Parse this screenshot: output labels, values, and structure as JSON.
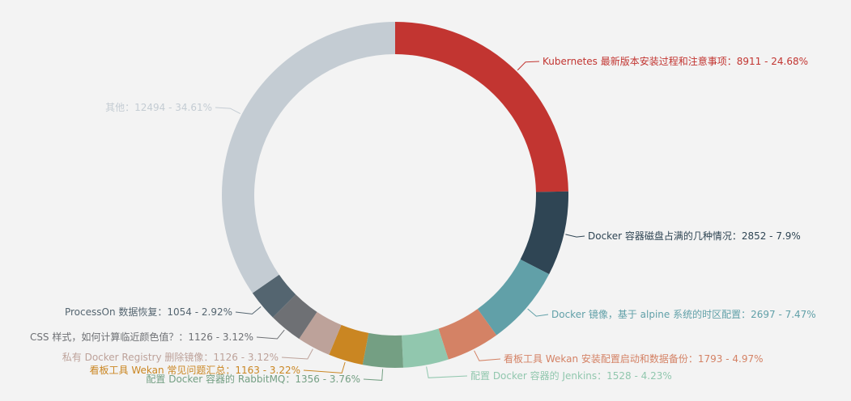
{
  "chart_data": {
    "type": "pie",
    "donut": true,
    "title": "",
    "legend": "none",
    "slices": [
      {
        "name": "Kubernetes 最新版本安装过程和注意事项",
        "value": 8911,
        "percent": "24.68%",
        "label": "Kubernetes 最新版本安装过程和注意事项：8911 - 24.68%",
        "color": "#c23531"
      },
      {
        "name": "Docker 容器磁盘占满的几种情况",
        "value": 2852,
        "percent": "7.9%",
        "label": "Docker 容器磁盘占满的几种情况：2852 - 7.9%",
        "color": "#2f4554"
      },
      {
        "name": "Docker 镜像，基于 alpine 系统的时区配置",
        "value": 2697,
        "percent": "7.47%",
        "label": "Docker 镜像，基于 alpine 系统的时区配置：2697 - 7.47%",
        "color": "#61a0a8"
      },
      {
        "name": "看板工具 Wekan 安装配置启动和数据备份",
        "value": 1793,
        "percent": "4.97%",
        "label": "看板工具 Wekan 安装配置启动和数据备份：1793 - 4.97%",
        "color": "#d48265"
      },
      {
        "name": "配置 Docker 容器的 Jenkins",
        "value": 1528,
        "percent": "4.23%",
        "label": "配置 Docker 容器的 Jenkins：1528 - 4.23%",
        "color": "#91c7ae"
      },
      {
        "name": "配置 Docker 容器的 RabbitMQ",
        "value": 1356,
        "percent": "3.76%",
        "label": "配置 Docker 容器的 RabbitMQ：1356 - 3.76%",
        "color": "#749f83"
      },
      {
        "name": "看板工具 Wekan 常见问题汇总",
        "value": 1163,
        "percent": "3.22%",
        "label": "看板工具 Wekan 常见问题汇总：1163 - 3.22%",
        "color": "#ca8622"
      },
      {
        "name": "私有 Docker Registry 删除镜像",
        "value": 1126,
        "percent": "3.12%",
        "label": "私有 Docker Registry 删除镜像：1126 - 3.12%",
        "color": "#bda29a"
      },
      {
        "name": "CSS 样式，如何计算临近颜色值？",
        "value": 1126,
        "percent": "3.12%",
        "label": "CSS 样式，如何计算临近颜色值？：1126 - 3.12%",
        "color": "#6e7074"
      },
      {
        "name": "ProcessOn 数据恢复",
        "value": 1054,
        "percent": "2.92%",
        "label": "ProcessOn 数据恢复：1054 - 2.92%",
        "color": "#546570"
      },
      {
        "name": "其他",
        "value": 12494,
        "percent": "34.61%",
        "label": "其他：12494 - 34.61%",
        "color": "#c4ccd3"
      }
    ]
  }
}
